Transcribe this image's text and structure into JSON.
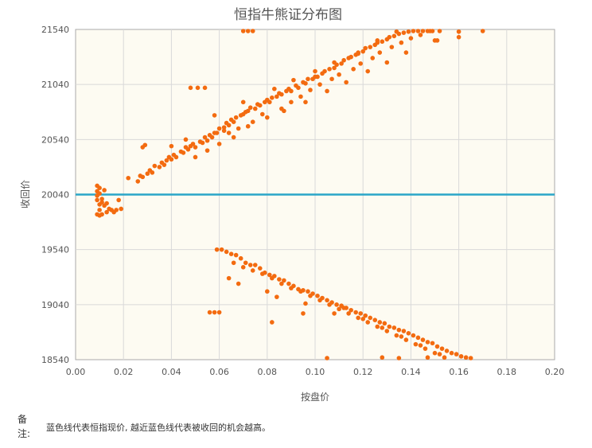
{
  "chart_data": {
    "type": "scatter",
    "title": "恒指牛熊证分布图",
    "xlabel": "按盘价",
    "ylabel": "收回价",
    "xlim": [
      0,
      0.2
    ],
    "ylim": [
      18540,
      21540
    ],
    "x_ticks": [
      "0.00",
      "0.02",
      "0.04",
      "0.06",
      "0.08",
      "0.10",
      "0.12",
      "0.14",
      "0.16",
      "0.18",
      "0.20"
    ],
    "y_ticks": [
      "18540",
      "19040",
      "19540",
      "20040",
      "20540",
      "21040",
      "21540"
    ],
    "grid": true,
    "reference_line": {
      "y": 20040,
      "color": "#2aa6c8"
    },
    "point_color": "#f36b10",
    "plot_background": "#fdfbf2",
    "series": [
      {
        "points": [
          [
            0.009,
            20120
          ],
          [
            0.009,
            20070
          ],
          [
            0.009,
            20030
          ],
          [
            0.009,
            19990
          ],
          [
            0.01,
            20100
          ],
          [
            0.01,
            20050
          ],
          [
            0.01,
            19950
          ],
          [
            0.01,
            19900
          ],
          [
            0.011,
            20000
          ],
          [
            0.011,
            19970
          ],
          [
            0.012,
            19940
          ],
          [
            0.013,
            19960
          ],
          [
            0.009,
            19860
          ],
          [
            0.01,
            19850
          ],
          [
            0.011,
            19860
          ],
          [
            0.014,
            19910
          ],
          [
            0.015,
            19900
          ],
          [
            0.016,
            19880
          ],
          [
            0.017,
            19900
          ],
          [
            0.019,
            19910
          ],
          [
            0.018,
            19990
          ],
          [
            0.013,
            19880
          ],
          [
            0.012,
            20080
          ],
          [
            0.022,
            20190
          ],
          [
            0.026,
            20160
          ],
          [
            0.027,
            20210
          ],
          [
            0.028,
            20200
          ],
          [
            0.03,
            20230
          ],
          [
            0.031,
            20260
          ],
          [
            0.032,
            20240
          ],
          [
            0.033,
            20300
          ],
          [
            0.035,
            20290
          ],
          [
            0.036,
            20330
          ],
          [
            0.037,
            20310
          ],
          [
            0.038,
            20350
          ],
          [
            0.039,
            20380
          ],
          [
            0.04,
            20360
          ],
          [
            0.041,
            20400
          ],
          [
            0.042,
            20380
          ],
          [
            0.044,
            20430
          ],
          [
            0.045,
            20420
          ],
          [
            0.046,
            20470
          ],
          [
            0.047,
            20450
          ],
          [
            0.048,
            20480
          ],
          [
            0.049,
            20500
          ],
          [
            0.05,
            20470
          ],
          [
            0.052,
            20520
          ],
          [
            0.053,
            20510
          ],
          [
            0.054,
            20560
          ],
          [
            0.055,
            20530
          ],
          [
            0.056,
            20580
          ],
          [
            0.057,
            20560
          ],
          [
            0.058,
            20600
          ],
          [
            0.059,
            20600
          ],
          [
            0.06,
            20640
          ],
          [
            0.062,
            20650
          ],
          [
            0.063,
            20690
          ],
          [
            0.064,
            20670
          ],
          [
            0.065,
            20720
          ],
          [
            0.066,
            20700
          ],
          [
            0.067,
            20740
          ],
          [
            0.069,
            20760
          ],
          [
            0.07,
            20770
          ],
          [
            0.071,
            20790
          ],
          [
            0.072,
            20800
          ],
          [
            0.073,
            20830
          ],
          [
            0.075,
            20820
          ],
          [
            0.076,
            20860
          ],
          [
            0.077,
            20850
          ],
          [
            0.079,
            20880
          ],
          [
            0.08,
            20900
          ],
          [
            0.081,
            20880
          ],
          [
            0.082,
            20920
          ],
          [
            0.084,
            20930
          ],
          [
            0.085,
            20960
          ],
          [
            0.086,
            20950
          ],
          [
            0.088,
            20980
          ],
          [
            0.089,
            21000
          ],
          [
            0.09,
            20980
          ],
          [
            0.092,
            21030
          ],
          [
            0.093,
            21010
          ],
          [
            0.095,
            21060
          ],
          [
            0.096,
            21050
          ],
          [
            0.097,
            21090
          ],
          [
            0.099,
            21090
          ],
          [
            0.1,
            21110
          ],
          [
            0.101,
            21110
          ],
          [
            0.103,
            21140
          ],
          [
            0.104,
            21160
          ],
          [
            0.106,
            21180
          ],
          [
            0.108,
            21190
          ],
          [
            0.109,
            21220
          ],
          [
            0.111,
            21230
          ],
          [
            0.112,
            21260
          ],
          [
            0.114,
            21280
          ],
          [
            0.115,
            21290
          ],
          [
            0.117,
            21310
          ],
          [
            0.118,
            21330
          ],
          [
            0.12,
            21340
          ],
          [
            0.121,
            21370
          ],
          [
            0.123,
            21380
          ],
          [
            0.125,
            21400
          ],
          [
            0.126,
            21420
          ],
          [
            0.128,
            21430
          ],
          [
            0.13,
            21450
          ],
          [
            0.131,
            21470
          ],
          [
            0.133,
            21480
          ],
          [
            0.135,
            21500
          ],
          [
            0.137,
            21510
          ],
          [
            0.139,
            21520
          ],
          [
            0.141,
            21530
          ],
          [
            0.143,
            21535
          ],
          [
            0.145,
            21535
          ],
          [
            0.147,
            21535
          ],
          [
            0.062,
            20620
          ],
          [
            0.064,
            20600
          ],
          [
            0.068,
            20640
          ],
          [
            0.074,
            20700
          ],
          [
            0.078,
            20770
          ],
          [
            0.086,
            20820
          ],
          [
            0.09,
            20880
          ],
          [
            0.094,
            20930
          ],
          [
            0.098,
            20990
          ],
          [
            0.102,
            21040
          ],
          [
            0.107,
            21090
          ],
          [
            0.11,
            21130
          ],
          [
            0.116,
            21180
          ],
          [
            0.119,
            21230
          ],
          [
            0.124,
            21280
          ],
          [
            0.127,
            21330
          ],
          [
            0.132,
            21380
          ],
          [
            0.136,
            21420
          ],
          [
            0.14,
            21460
          ],
          [
            0.144,
            21490
          ],
          [
            0.05,
            20380
          ],
          [
            0.055,
            20440
          ],
          [
            0.06,
            20500
          ],
          [
            0.066,
            20560
          ],
          [
            0.072,
            20660
          ],
          [
            0.08,
            20740
          ],
          [
            0.087,
            20800
          ],
          [
            0.096,
            20880
          ],
          [
            0.105,
            20980
          ],
          [
            0.113,
            21060
          ],
          [
            0.122,
            21160
          ],
          [
            0.13,
            21240
          ],
          [
            0.138,
            21330
          ],
          [
            0.04,
            20480
          ],
          [
            0.046,
            20540
          ],
          [
            0.058,
            20760
          ],
          [
            0.07,
            20880
          ],
          [
            0.083,
            21000
          ],
          [
            0.091,
            21080
          ],
          [
            0.1,
            21160
          ],
          [
            0.108,
            21240
          ],
          [
            0.118,
            21320
          ],
          [
            0.126,
            21440
          ],
          [
            0.134,
            21520
          ],
          [
            0.028,
            20470
          ],
          [
            0.029,
            20490
          ],
          [
            0.048,
            21010
          ],
          [
            0.051,
            21010
          ],
          [
            0.054,
            21010
          ],
          [
            0.07,
            21550
          ],
          [
            0.072,
            21550
          ],
          [
            0.074,
            21550
          ],
          [
            0.148,
            21540
          ],
          [
            0.149,
            21540
          ],
          [
            0.15,
            21440
          ],
          [
            0.151,
            21440
          ],
          [
            0.152,
            21540
          ],
          [
            0.16,
            21470
          ],
          [
            0.16,
            21520
          ],
          [
            0.17,
            21540
          ],
          [
            0.059,
            19540
          ],
          [
            0.061,
            19540
          ],
          [
            0.063,
            19520
          ],
          [
            0.065,
            19500
          ],
          [
            0.067,
            19490
          ],
          [
            0.069,
            19460
          ],
          [
            0.071,
            19420
          ],
          [
            0.073,
            19400
          ],
          [
            0.075,
            19400
          ],
          [
            0.077,
            19370
          ],
          [
            0.079,
            19330
          ],
          [
            0.081,
            19310
          ],
          [
            0.083,
            19300
          ],
          [
            0.085,
            19270
          ],
          [
            0.087,
            19260
          ],
          [
            0.089,
            19230
          ],
          [
            0.091,
            19210
          ],
          [
            0.093,
            19180
          ],
          [
            0.095,
            19170
          ],
          [
            0.097,
            19160
          ],
          [
            0.099,
            19140
          ],
          [
            0.101,
            19120
          ],
          [
            0.103,
            19100
          ],
          [
            0.105,
            19080
          ],
          [
            0.107,
            19060
          ],
          [
            0.109,
            19040
          ],
          [
            0.111,
            19030
          ],
          [
            0.113,
            19010
          ],
          [
            0.115,
            18990
          ],
          [
            0.117,
            18970
          ],
          [
            0.119,
            18960
          ],
          [
            0.121,
            18940
          ],
          [
            0.123,
            18920
          ],
          [
            0.125,
            18900
          ],
          [
            0.127,
            18880
          ],
          [
            0.129,
            18870
          ],
          [
            0.131,
            18840
          ],
          [
            0.133,
            18830
          ],
          [
            0.135,
            18810
          ],
          [
            0.137,
            18800
          ],
          [
            0.139,
            18780
          ],
          [
            0.141,
            18760
          ],
          [
            0.143,
            18740
          ],
          [
            0.145,
            18720
          ],
          [
            0.147,
            18700
          ],
          [
            0.149,
            18690
          ],
          [
            0.151,
            18660
          ],
          [
            0.153,
            18640
          ],
          [
            0.155,
            18620
          ],
          [
            0.157,
            18600
          ],
          [
            0.159,
            18590
          ],
          [
            0.161,
            18570
          ],
          [
            0.163,
            18560
          ],
          [
            0.165,
            18550
          ],
          [
            0.066,
            19420
          ],
          [
            0.07,
            19380
          ],
          [
            0.074,
            19350
          ],
          [
            0.078,
            19320
          ],
          [
            0.082,
            19280
          ],
          [
            0.086,
            19230
          ],
          [
            0.09,
            19190
          ],
          [
            0.094,
            19160
          ],
          [
            0.098,
            19120
          ],
          [
            0.102,
            19080
          ],
          [
            0.106,
            19040
          ],
          [
            0.11,
            19000
          ],
          [
            0.114,
            18960
          ],
          [
            0.118,
            18920
          ],
          [
            0.122,
            18880
          ],
          [
            0.126,
            18840
          ],
          [
            0.13,
            18800
          ],
          [
            0.134,
            18760
          ],
          [
            0.138,
            18720
          ],
          [
            0.142,
            18680
          ],
          [
            0.146,
            18640
          ],
          [
            0.15,
            18600
          ],
          [
            0.154,
            18560
          ],
          [
            0.064,
            19280
          ],
          [
            0.068,
            19230
          ],
          [
            0.08,
            19160
          ],
          [
            0.084,
            19110
          ],
          [
            0.096,
            19050
          ],
          [
            0.108,
            18960
          ],
          [
            0.112,
            19010
          ],
          [
            0.12,
            18910
          ],
          [
            0.128,
            18830
          ],
          [
            0.136,
            18750
          ],
          [
            0.144,
            18670
          ],
          [
            0.152,
            18590
          ],
          [
            0.056,
            18970
          ],
          [
            0.058,
            18970
          ],
          [
            0.06,
            18970
          ],
          [
            0.082,
            18880
          ],
          [
            0.095,
            18960
          ],
          [
            0.105,
            18550
          ],
          [
            0.128,
            18560
          ],
          [
            0.135,
            18550
          ],
          [
            0.147,
            18560
          ]
        ]
      }
    ]
  },
  "note": {
    "label": "备注:",
    "text": "蓝色线代表恒指现价, 越近蓝色线代表被收回的机会越高。"
  }
}
